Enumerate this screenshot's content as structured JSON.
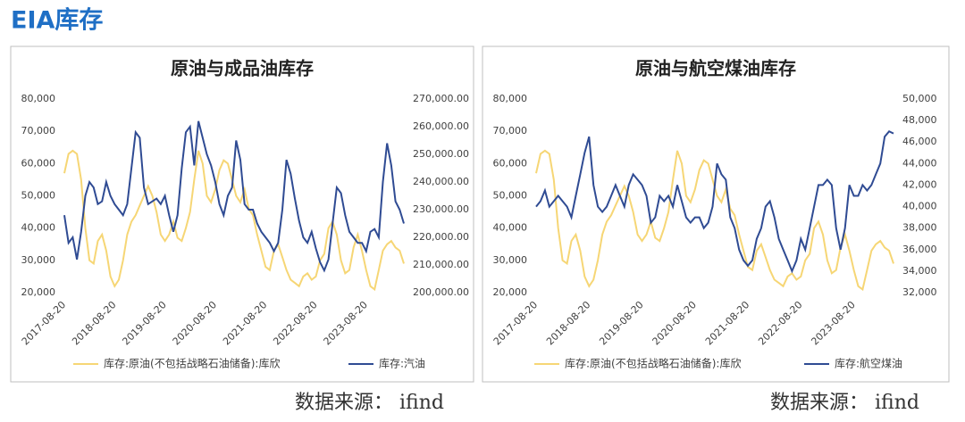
{
  "title": "EIA库存",
  "sources": [
    "数据来源： ifind",
    "数据来源： ifind"
  ],
  "chart_data": [
    {
      "type": "line",
      "title": "原油与成品油库存",
      "categories": [
        "2017-08-20",
        null,
        null,
        null,
        null,
        null,
        null,
        null,
        null,
        null,
        null,
        null,
        "2018-08-20",
        null,
        null,
        null,
        null,
        null,
        null,
        null,
        null,
        null,
        null,
        null,
        "2019-08-20",
        null,
        null,
        null,
        null,
        null,
        null,
        null,
        null,
        null,
        null,
        null,
        "2020-08-20",
        null,
        null,
        null,
        null,
        null,
        null,
        null,
        null,
        null,
        null,
        null,
        "2021-08-20",
        null,
        null,
        null,
        null,
        null,
        null,
        null,
        null,
        null,
        null,
        null,
        "2022-08-20",
        null,
        null,
        null,
        null,
        null,
        null,
        null,
        null,
        null,
        null,
        null,
        "2023-08-20",
        null,
        null,
        null,
        null,
        null,
        null,
        null,
        null,
        null
      ],
      "series": [
        {
          "name": "库存:原油(不包括战略石油储备):库欣",
          "color": "#f6d675",
          "axis": "y",
          "values": [
            57000,
            63000,
            64000,
            63000,
            55000,
            40000,
            30000,
            29000,
            36000,
            38000,
            33000,
            25000,
            22000,
            24000,
            30000,
            38000,
            42000,
            44000,
            47000,
            50000,
            53000,
            50000,
            45000,
            38000,
            36000,
            38000,
            42000,
            37000,
            36000,
            40000,
            45000,
            55000,
            64000,
            60000,
            50000,
            48000,
            52000,
            58000,
            61000,
            60000,
            55000,
            50000,
            48000,
            52000,
            46000,
            44000,
            38000,
            33000,
            28000,
            27000,
            33000,
            35000,
            31000,
            27000,
            24000,
            23000,
            22000,
            25000,
            26000,
            24000,
            25000,
            30000,
            32000,
            40000,
            42000,
            38000,
            30000,
            26000,
            27000,
            34000,
            38000,
            33000,
            27000,
            22000,
            21000,
            27000,
            33000,
            35000,
            36000,
            34000,
            33000,
            29000
          ]
        },
        {
          "name": "库存:汽油",
          "color": "#2f4b93",
          "axis": "y2",
          "values": [
            228000,
            218000,
            220000,
            212000,
            222000,
            235000,
            240000,
            238000,
            232000,
            233000,
            240000,
            235000,
            232000,
            230000,
            228000,
            232000,
            245000,
            258000,
            256000,
            238000,
            232000,
            233000,
            234000,
            232000,
            235000,
            228000,
            222000,
            228000,
            245000,
            258000,
            260000,
            246000,
            262000,
            256000,
            250000,
            246000,
            240000,
            232000,
            228000,
            235000,
            238000,
            255000,
            248000,
            232000,
            230000,
            230000,
            225000,
            222000,
            220000,
            218000,
            215000,
            218000,
            230000,
            248000,
            243000,
            234000,
            226000,
            220000,
            218000,
            222000,
            216000,
            211000,
            208000,
            212000,
            225000,
            238000,
            236000,
            228000,
            222000,
            220000,
            218000,
            218000,
            215000,
            222000,
            223000,
            220000,
            240000,
            254000,
            246000,
            233000,
            230000,
            225000
          ]
        }
      ],
      "ylim": [
        20000,
        80000
      ],
      "yticks": [
        {
          "value": 20000,
          "label": "20,000"
        },
        {
          "value": 30000,
          "label": "30,000"
        },
        {
          "value": 40000,
          "label": "40,000"
        },
        {
          "value": 50000,
          "label": "50,000"
        },
        {
          "value": 60000,
          "label": "60,000"
        },
        {
          "value": 70000,
          "label": "70,000"
        },
        {
          "value": 80000,
          "label": "80,000"
        }
      ],
      "y2lim": [
        200000,
        270000
      ],
      "y2ticks": [
        {
          "value": 200000,
          "label": "200,000.00"
        },
        {
          "value": 210000,
          "label": "210,000.00"
        },
        {
          "value": 220000,
          "label": "220,000.00"
        },
        {
          "value": 230000,
          "label": "230,000.00"
        },
        {
          "value": 240000,
          "label": "240,000.00"
        },
        {
          "value": 250000,
          "label": "250,000.00"
        },
        {
          "value": 260000,
          "label": "260,000.00"
        },
        {
          "value": 270000,
          "label": "270,000.00"
        }
      ],
      "legend": "bottom"
    },
    {
      "type": "line",
      "title": "原油与航空煤油库存",
      "categories": [
        "2017-08-20",
        null,
        null,
        null,
        null,
        null,
        null,
        null,
        null,
        null,
        null,
        null,
        "2018-08-20",
        null,
        null,
        null,
        null,
        null,
        null,
        null,
        null,
        null,
        null,
        null,
        "2019-08-20",
        null,
        null,
        null,
        null,
        null,
        null,
        null,
        null,
        null,
        null,
        null,
        "2020-08-20",
        null,
        null,
        null,
        null,
        null,
        null,
        null,
        null,
        null,
        null,
        null,
        "2021-08-20",
        null,
        null,
        null,
        null,
        null,
        null,
        null,
        null,
        null,
        null,
        null,
        "2022-08-20",
        null,
        null,
        null,
        null,
        null,
        null,
        null,
        null,
        null,
        null,
        null,
        "2023-08-20",
        null,
        null,
        null,
        null,
        null,
        null,
        null,
        null,
        null
      ],
      "series": [
        {
          "name": "库存:原油(不包括战略石油储备):库欣",
          "color": "#f6d675",
          "axis": "y",
          "values": [
            57000,
            63000,
            64000,
            63000,
            55000,
            40000,
            30000,
            29000,
            36000,
            38000,
            33000,
            25000,
            22000,
            24000,
            30000,
            38000,
            42000,
            44000,
            47000,
            50000,
            53000,
            50000,
            45000,
            38000,
            36000,
            38000,
            42000,
            37000,
            36000,
            40000,
            45000,
            55000,
            64000,
            60000,
            50000,
            48000,
            52000,
            58000,
            61000,
            60000,
            55000,
            50000,
            48000,
            52000,
            46000,
            44000,
            38000,
            33000,
            28000,
            27000,
            33000,
            35000,
            31000,
            27000,
            24000,
            23000,
            22000,
            25000,
            26000,
            24000,
            25000,
            30000,
            32000,
            40000,
            42000,
            38000,
            30000,
            26000,
            27000,
            34000,
            38000,
            33000,
            27000,
            22000,
            21000,
            27000,
            33000,
            35000,
            36000,
            34000,
            33000,
            29000
          ]
        },
        {
          "name": "库存:航空煤油",
          "color": "#2f4b93",
          "axis": "y2",
          "values": [
            40000,
            40500,
            41500,
            40000,
            40500,
            41000,
            40500,
            40000,
            39000,
            41000,
            43000,
            45000,
            46500,
            42000,
            40000,
            39500,
            40000,
            41000,
            42000,
            41000,
            40000,
            42000,
            43000,
            42500,
            42000,
            41000,
            38500,
            39000,
            41000,
            40500,
            41000,
            40000,
            42000,
            40500,
            39000,
            38500,
            39000,
            39000,
            38000,
            38500,
            40000,
            44000,
            43000,
            42500,
            39000,
            38000,
            36000,
            35000,
            34500,
            35000,
            37000,
            38000,
            40000,
            40500,
            39000,
            37000,
            36000,
            35000,
            34000,
            35000,
            37000,
            36000,
            38000,
            40000,
            42000,
            42000,
            42500,
            42000,
            38000,
            36000,
            38000,
            42000,
            41000,
            41000,
            42000,
            41500,
            42000,
            43000,
            44000,
            46500,
            47000,
            46800
          ]
        }
      ],
      "ylim": [
        20000,
        80000
      ],
      "yticks": [
        {
          "value": 20000,
          "label": "20,000"
        },
        {
          "value": 30000,
          "label": "30,000"
        },
        {
          "value": 40000,
          "label": "40,000"
        },
        {
          "value": 50000,
          "label": "50,000"
        },
        {
          "value": 60000,
          "label": "60,000"
        },
        {
          "value": 70000,
          "label": "70,000"
        },
        {
          "value": 80000,
          "label": "80,000"
        }
      ],
      "y2lim": [
        32000,
        50000
      ],
      "y2ticks": [
        {
          "value": 32000,
          "label": "32,000"
        },
        {
          "value": 34000,
          "label": "34,000"
        },
        {
          "value": 36000,
          "label": "36,000"
        },
        {
          "value": 38000,
          "label": "38,000"
        },
        {
          "value": 40000,
          "label": "40,000"
        },
        {
          "value": 42000,
          "label": "42,000"
        },
        {
          "value": 44000,
          "label": "44,000"
        },
        {
          "value": 46000,
          "label": "46,000"
        },
        {
          "value": 48000,
          "label": "48,000"
        },
        {
          "value": 50000,
          "label": "50,000"
        }
      ],
      "legend": "bottom"
    }
  ]
}
